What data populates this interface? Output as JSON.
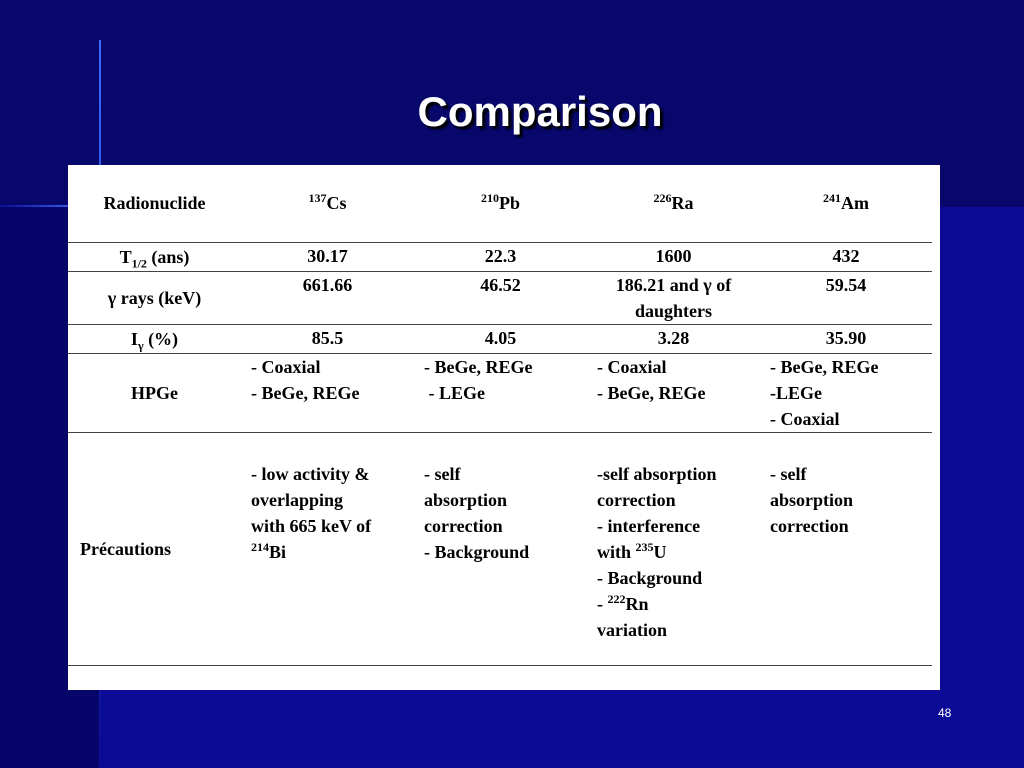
{
  "title": "Comparison",
  "page_number": "48",
  "table": {
    "header": [
      [
        "Radionuclide"
      ],
      [
        [
          {
            "sup": "137"
          },
          "Cs"
        ]
      ],
      [
        [
          {
            "sup": "210"
          },
          "Pb"
        ]
      ],
      [
        [
          {
            "sup": "226"
          },
          "Ra"
        ]
      ],
      [
        [
          {
            "sup": "241"
          },
          "Am"
        ]
      ]
    ],
    "rows": [
      [
        [
          [
            "T",
            {
              "sub": "1/2"
            },
            " (ans)"
          ]
        ],
        [
          "30.17"
        ],
        [
          "22.3"
        ],
        [
          "1600"
        ],
        [
          "432"
        ]
      ],
      [
        [
          "γ rays (keV)"
        ],
        [
          "661.66"
        ],
        [
          "46.52"
        ],
        [
          "186.21 and γ of",
          "daughters"
        ],
        [
          "59.54"
        ]
      ],
      [
        [
          [
            "I",
            {
              "sub": "γ"
            },
            " (%)"
          ]
        ],
        [
          "85.5"
        ],
        [
          "4.05"
        ],
        [
          "3.28"
        ],
        [
          "35.90"
        ]
      ],
      [
        [
          "HPGe"
        ],
        [
          "- Coaxial",
          "- BeGe, REGe"
        ],
        [
          "- BeGe, REGe",
          " - LEGe"
        ],
        [
          "- Coaxial",
          "- BeGe, REGe"
        ],
        [
          "- BeGe, REGe",
          "-LEGe",
          "- Coaxial"
        ]
      ],
      [
        [
          "Précautions"
        ],
        [
          "- low activity &",
          "overlapping",
          "with 665 keV of",
          [
            {
              "sup": "214"
            },
            "Bi"
          ]
        ],
        [
          "- self",
          "absorption",
          "correction",
          "- Background"
        ],
        [
          "-self absorption",
          "correction",
          "- interference",
          [
            "with ",
            {
              "sup": "235"
            },
            "U"
          ],
          "- Background",
          [
            "- ",
            {
              "sup": "222"
            },
            "Rn"
          ],
          "variation"
        ],
        [
          "- self",
          "absorption",
          "correction"
        ]
      ]
    ]
  }
}
